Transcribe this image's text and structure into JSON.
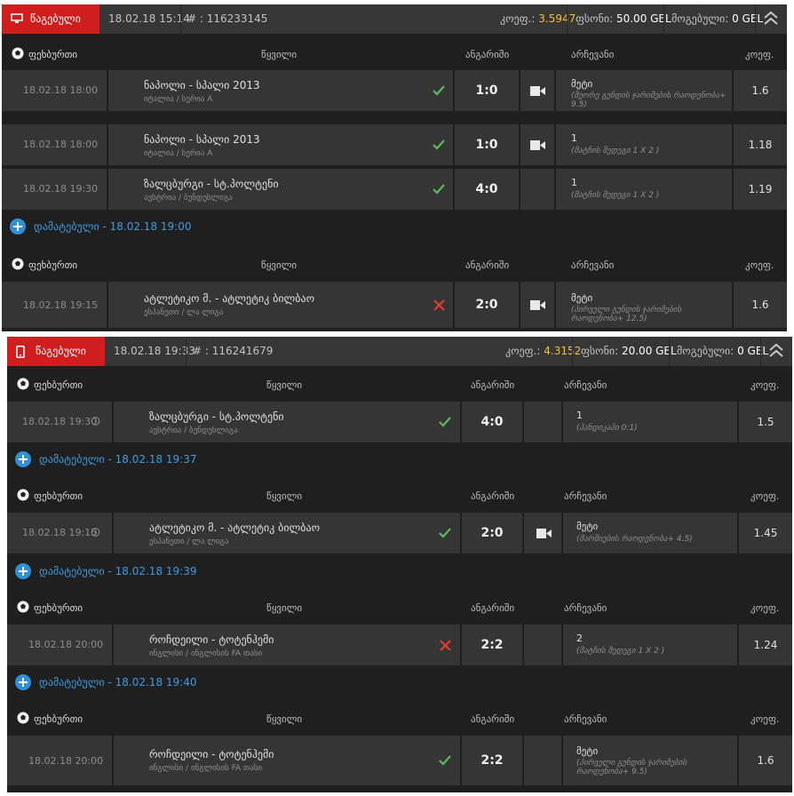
{
  "colors": {
    "accent_red": "#d01e1e",
    "odds_yellow": "#f1c232",
    "link_blue": "#3f9bdf",
    "win_green": "#5cb85c",
    "loss_red": "#e53935"
  },
  "tickets": [
    {
      "type_label": "წაგებული",
      "date": "18.02.18 15:14",
      "id": "# : 116233145",
      "odds_label": "კოეფ.:",
      "odds_value": "3.5947",
      "stake_label": "ფსონი:",
      "stake_value": "50.00 GEL",
      "win_label": "მოგებული:",
      "win_value": "0 GEL",
      "groups": [
        {
          "header": {
            "sport": "ფეხბურთი",
            "event": "წყვილი",
            "score": "ანგარიში",
            "selection": "არჩევანი",
            "odds": "კოეფ."
          },
          "rows": [
            {
              "date": "18.02.18 18:00",
              "match": "ნაპოლი - სპალი 2013",
              "league": "იტალია / სერია A",
              "result": "win",
              "score": "1:0",
              "pick": "მეტი",
              "pick_desc": "(მეორე გუნდის ჯარიმების რაოდენობა+ 9.5)",
              "odds": "1.6"
            },
            {
              "date": "18.02.18 18:00",
              "match": "ნაპოლი - სპალი 2013",
              "league": "იტალია / სერია A",
              "result": "win",
              "score": "1:0",
              "pick": "1",
              "pick_desc": "(მატჩის შედეგი 1 X 2 )",
              "odds": "1.18"
            },
            {
              "date": "18.02.18 19:30",
              "match": "ზალცბურგი - სტ.პოლტენი",
              "league": "ავსტრია / ბუნდესლიგა",
              "result": "win",
              "score": "4:0",
              "pick": "1",
              "pick_desc": "(მატჩის შედეგი 1 X 2 )",
              "odds": "1.19"
            }
          ]
        },
        {
          "added": "დამატებული - 18.02.18 19:00",
          "header": {
            "sport": "ფეხბურთი",
            "event": "წყვილი",
            "score": "ანგარიში",
            "selection": "არჩევანი",
            "odds": "კოეფ."
          },
          "rows": [
            {
              "date": "18.02.18 19:15",
              "match": "ატლეტიკო მ. - ატლეტიკ ბილბაო",
              "league": "ესპანეთი / ლა ლიგა",
              "result": "loss",
              "score": "2:0",
              "pick": "მეტი",
              "pick_desc": "(პირველი გუნდის ჯარიმების რაოდენობა+ 12.5)",
              "odds": "1.6"
            }
          ]
        }
      ]
    },
    {
      "type_label": "წაგებული",
      "date": "18.02.18 19:33",
      "id": "# : 116241679",
      "odds_label": "კოეფ.:",
      "odds_value": "4.3152",
      "stake_label": "ფსონი:",
      "stake_value": "20.00 GEL",
      "win_label": "მოგებული:",
      "win_value": "0 GEL",
      "groups": [
        {
          "header": {
            "sport": "ფეხბურთი",
            "event": "წყვილი",
            "score": "ანგარიში",
            "selection": "არჩევანი",
            "odds": "კოეფ."
          },
          "rows": [
            {
              "date": "18.02.18 19:30",
              "clock": true,
              "match": "ზალცბურგი - სტ.პოლტენი",
              "league": "ავსტრია / ბუნდესლიგა",
              "result": "win",
              "score": "4:0",
              "pick": "1",
              "pick_desc": "(ჰანდიკაპი 0:1)",
              "odds": "1.5"
            }
          ]
        },
        {
          "added": "დამატებული - 18.02.18 19:37",
          "header": {
            "sport": "ფეხბურთი",
            "event": "წყვილი",
            "score": "ანგარიში",
            "selection": "არჩევანი",
            "odds": "კოეფ."
          },
          "rows": [
            {
              "date": "18.02.18 19:15",
              "clock": true,
              "match": "ატლეტიკო მ. - ატლეტიკ ბილბაო",
              "league": "ესპანეთი / ლა ლიგა",
              "result": "win",
              "score": "2:0",
              "video": true,
              "pick": "მეტი",
              "pick_desc": "(მარშიების რაოდენობა+ 4.5)",
              "odds": "1.45"
            }
          ]
        },
        {
          "added": "დამატებული - 18.02.18 19:39",
          "header": {
            "sport": "ფეხბურთი",
            "event": "წყვილი",
            "score": "ანგარიში",
            "selection": "არჩევანი",
            "odds": "კოეფ."
          },
          "rows": [
            {
              "date": "18.02.18 20:00",
              "match": "როჩდეილი - ტოტენჰემი",
              "league": "ინგლისი / ინგლისის FA თასი",
              "result": "loss",
              "score": "2:2",
              "pick": "2",
              "pick_desc": "(მატჩის შედეგი 1 X 2 )",
              "odds": "1.24"
            }
          ]
        },
        {
          "added": "დამატებული - 18.02.18 19:40",
          "header": {
            "sport": "ფეხბურთი",
            "event": "წყვილი",
            "score": "ანგარიში",
            "selection": "არჩევანი",
            "odds": "კოეფ."
          },
          "rows": [
            {
              "date": "18.02.18 20:00",
              "match": "როჩდეილი - ტოტენჰემი",
              "league": "ინგლისი / ინგლისის FA თასი",
              "result": "win",
              "score": "2:2",
              "pick": "მეტი",
              "pick_desc": "(პირველი გუნდის ჯარიმების რაოდენობა+ 9.5)",
              "odds": "1.6"
            }
          ]
        }
      ]
    }
  ]
}
